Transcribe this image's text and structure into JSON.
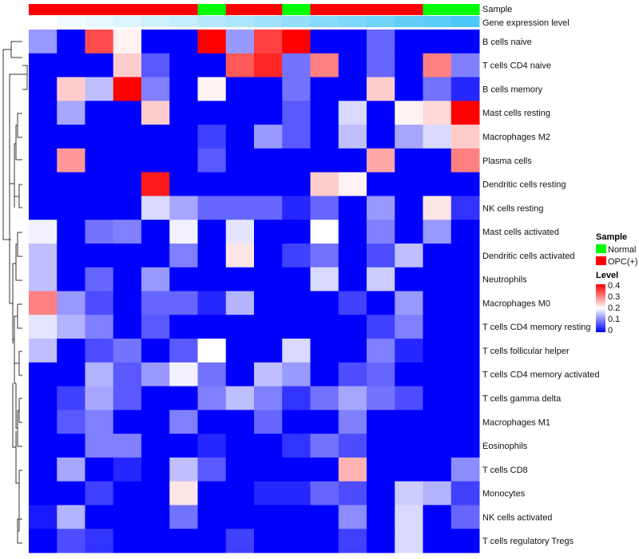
{
  "chart_data": {
    "type": "heatmap",
    "annotation_labels": [
      "Sample",
      "Gene expression level"
    ],
    "sample_groups": [
      "OPC(+)",
      "OPC(+)",
      "OPC(+)",
      "OPC(+)",
      "OPC(+)",
      "OPC(+)",
      "Normal",
      "OPC(+)",
      "OPC(+)",
      "Normal",
      "OPC(+)",
      "OPC(+)",
      "OPC(+)",
      "OPC(+)",
      "Normal",
      "Normal"
    ],
    "gene_expression_level": [
      0,
      0.07,
      0.13,
      0.2,
      0.27,
      0.33,
      0.4,
      0.47,
      0.53,
      0.6,
      0.67,
      0.73,
      0.8,
      0.87,
      0.93,
      1
    ],
    "rows": [
      "B cells naive",
      "T cells CD4 naive",
      "B cells memory",
      "Mast cells resting",
      "Macrophages M2",
      "Plasma cells",
      "Dendritic cells resting",
      "NK cells resting",
      "Mast cells activated",
      "Dendritic cells activated",
      "Neutrophils",
      "Macrophages M0",
      "T cells CD4 memory resting",
      "T cells follicular helper",
      "T cells CD4 memory activated",
      "T cells gamma delta",
      "Macrophages M1",
      "Eosinophils",
      "T cells CD8",
      "Monocytes",
      "NK cells activated",
      "T cells regulatory  Tregs"
    ],
    "values": [
      [
        0.12,
        0,
        0.34,
        0.21,
        0,
        0,
        0.4,
        0.12,
        0.35,
        0.4,
        0,
        0,
        0.08,
        0,
        0,
        0
      ],
      [
        0,
        0,
        0,
        0.24,
        0.07,
        0,
        0,
        0.33,
        0.37,
        0.09,
        0.3,
        0,
        0.08,
        0,
        0.3,
        0.1
      ],
      [
        0,
        0.24,
        0.15,
        0.4,
        0.1,
        0,
        0.21,
        0,
        0,
        0.09,
        0,
        0,
        0.24,
        0,
        0.09,
        0.03
      ],
      [
        0,
        0.13,
        0,
        0,
        0.24,
        0,
        0,
        0,
        0,
        0.07,
        0,
        0.17,
        0,
        0.21,
        0.23,
        0.4
      ],
      [
        0,
        0,
        0,
        0,
        0,
        0,
        0.05,
        0,
        0.12,
        0.07,
        0,
        0.15,
        0,
        0.13,
        0.17,
        0.24
      ],
      [
        0,
        0.28,
        0,
        0,
        0,
        0,
        0.07,
        0,
        0,
        0,
        0,
        0,
        0.27,
        0,
        0,
        0.3
      ],
      [
        0,
        0,
        0,
        0,
        0.38,
        0,
        0,
        0,
        0,
        0,
        0.24,
        0.21,
        0,
        0,
        0,
        0
      ],
      [
        0,
        0,
        0,
        0,
        0.17,
        0.13,
        0.08,
        0.08,
        0.08,
        0.03,
        0.08,
        0,
        0.12,
        0,
        0.22,
        0.04
      ],
      [
        0.19,
        0,
        0.09,
        0.1,
        0,
        0.19,
        0,
        0.18,
        0,
        0,
        0.2,
        0,
        0.1,
        0,
        0.12,
        0
      ],
      [
        0.15,
        0,
        0,
        0,
        0,
        0.1,
        0,
        0.22,
        0,
        0.05,
        0.09,
        0,
        0.06,
        0.15,
        0,
        0
      ],
      [
        0.15,
        0,
        0.08,
        0,
        0.12,
        0,
        0,
        0,
        0,
        0,
        0.17,
        0,
        0.16,
        0,
        0,
        0
      ],
      [
        0.3,
        0.12,
        0.06,
        0,
        0.08,
        0.08,
        0.03,
        0.14,
        0,
        0,
        0,
        0.05,
        0,
        0.12,
        0,
        0
      ],
      [
        0.18,
        0.14,
        0.1,
        0,
        0.07,
        0,
        0,
        0,
        0,
        0,
        0,
        0,
        0.05,
        0.1,
        0,
        0
      ],
      [
        0.15,
        0,
        0.06,
        0.09,
        0,
        0.07,
        0.2,
        0,
        0,
        0.17,
        0,
        0,
        0.1,
        0.03,
        0,
        0
      ],
      [
        0,
        0,
        0.14,
        0.07,
        0.12,
        0.19,
        0.09,
        0,
        0.15,
        0.12,
        0,
        0.06,
        0.08,
        0,
        0,
        0
      ],
      [
        0,
        0.05,
        0.13,
        0.07,
        0,
        0,
        0.1,
        0.15,
        0.1,
        0.04,
        0.09,
        0.13,
        0.09,
        0.06,
        0,
        0
      ],
      [
        0,
        0.07,
        0.1,
        0,
        0,
        0.1,
        0,
        0,
        0.08,
        0,
        0,
        0.1,
        0,
        0,
        0,
        0
      ],
      [
        0,
        0,
        0.1,
        0.1,
        0,
        0,
        0.03,
        0,
        0,
        0.04,
        0.09,
        0.06,
        0,
        0,
        0,
        0
      ],
      [
        0,
        0.13,
        0,
        0.03,
        0,
        0.15,
        0.07,
        0,
        0,
        0,
        0,
        0.26,
        0,
        0,
        0,
        0.11
      ],
      [
        0,
        0,
        0.05,
        0,
        0,
        0.22,
        0,
        0,
        0.03,
        0.03,
        0.08,
        0.06,
        0,
        0.16,
        0.14,
        0.05
      ],
      [
        0.02,
        0.14,
        0,
        0,
        0,
        0.09,
        0,
        0,
        0,
        0,
        0,
        0.11,
        0,
        0.17,
        0,
        0.08
      ],
      [
        0,
        0.06,
        0.04,
        0,
        0,
        0,
        0,
        0.05,
        0,
        0,
        0,
        0.05,
        0,
        0.17,
        0,
        0
      ]
    ],
    "color_scale": {
      "min": 0,
      "mid": 0.2,
      "max": 0.4,
      "low": "#0000ff",
      "midcolor": "#ffffff",
      "high": "#ff0000"
    },
    "legend": {
      "sample_title": "Sample",
      "sample_entries": [
        {
          "label": "Normal",
          "color": "#00ff00"
        },
        {
          "label": "OPC(+)",
          "color": "#ff0000"
        }
      ],
      "level_title": "Level",
      "level_ticks": [
        "0.4",
        "0.3",
        "0.2",
        "0.1",
        "0"
      ]
    },
    "gene_level_colors": {
      "low": "#ffffff",
      "high": "#4cc8f8"
    }
  }
}
